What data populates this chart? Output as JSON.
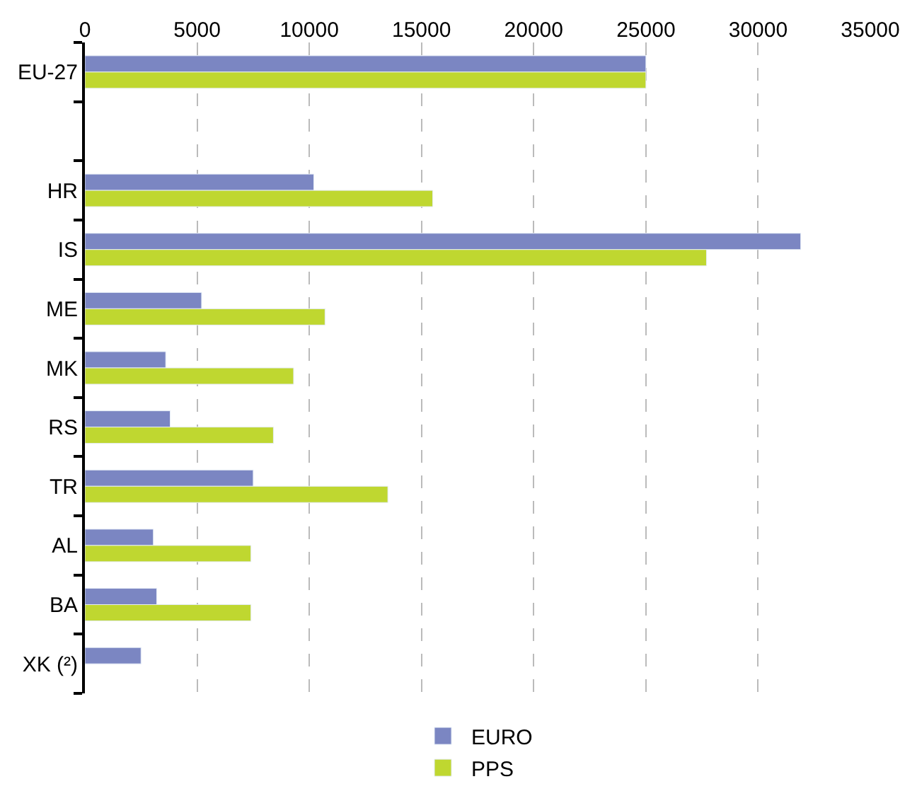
{
  "chart_data": {
    "type": "bar",
    "orientation": "horizontal",
    "categories": [
      "EU-27",
      null,
      "HR",
      "IS",
      "ME",
      "MK",
      "RS",
      "TR",
      "AL",
      "BA",
      "XK (²)"
    ],
    "series": [
      {
        "name": "EURO",
        "color": "#7b86c2",
        "values": [
          25000,
          null,
          10200,
          31900,
          5200,
          3600,
          3800,
          7500,
          3050,
          3200,
          2500
        ]
      },
      {
        "name": "PPS",
        "color": "#bfd730",
        "values": [
          25000,
          null,
          15500,
          27700,
          10700,
          9300,
          8400,
          13500,
          7400,
          7400,
          null
        ]
      }
    ],
    "xlim": [
      0,
      35000
    ],
    "xticks": [
      0,
      5000,
      10000,
      15000,
      20000,
      25000,
      30000,
      35000
    ],
    "grid": "x",
    "legend": "bottom"
  }
}
